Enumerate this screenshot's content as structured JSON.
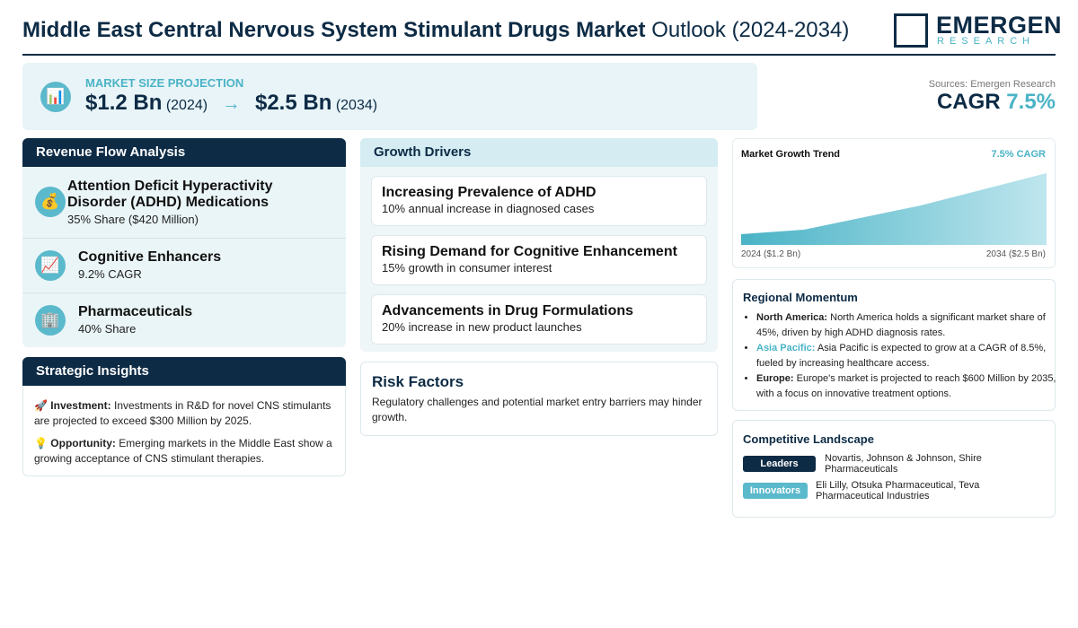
{
  "header": {
    "title_bold": "Middle East Central Nervous System Stimulant Drugs Market",
    "title_rest": "Outlook (2024-2034)",
    "logo_main": "EMERGEN",
    "logo_sub": "RESEARCH"
  },
  "market_size": {
    "label": "MARKET SIZE PROJECTION",
    "start_value": "$1.2 Bn",
    "start_year": "(2024)",
    "end_value": "$2.5 Bn",
    "end_year": "(2034)"
  },
  "summary": {
    "source": "Sources: Emergen Research",
    "cagr_label": "CAGR",
    "cagr_value": "7.5%"
  },
  "revenue_flow": {
    "title": "Revenue Flow Analysis",
    "items": [
      {
        "name": "Attention Deficit Hyperactivity Disorder (ADHD) Medications",
        "detail": "35% Share ($420 Million)"
      },
      {
        "name": "Cognitive Enhancers",
        "detail": "9.2% CAGR"
      },
      {
        "name": "Pharmaceuticals",
        "detail": "40% Share"
      }
    ]
  },
  "strategic_insights": {
    "title": "Strategic Insights",
    "items": [
      {
        "label": "Investment:",
        "text": "Investments in R&D for novel CNS stimulants are projected to exceed $300 Million by 2025."
      },
      {
        "label": "Opportunity:",
        "text": "Emerging markets in the Middle East show a growing acceptance of CNS stimulant therapies."
      }
    ]
  },
  "growth_drivers": {
    "title": "Growth Drivers",
    "items": [
      {
        "name": "Increasing Prevalence of ADHD",
        "detail": "10% annual increase in diagnosed cases"
      },
      {
        "name": "Rising Demand for Cognitive Enhancement",
        "detail": "15% growth in consumer interest"
      },
      {
        "name": "Advancements in Drug Formulations",
        "detail": "20% increase in new product launches"
      }
    ]
  },
  "risk_factors": {
    "title": "Risk Factors",
    "text": "Regulatory challenges and potential market entry barriers may hinder growth."
  },
  "trend": {
    "title": "Market Growth Trend",
    "badge": "7.5% CAGR",
    "start_label": "2024 ($1.2 Bn)",
    "end_label": "2034 ($2.5 Bn)"
  },
  "regional": {
    "title": "Regional Momentum",
    "items": [
      {
        "region": "North America:",
        "text": "North America holds a significant market share of 45%, driven by high ADHD diagnosis rates."
      },
      {
        "region": "Asia Pacific:",
        "text": "Asia Pacific is expected to grow at a CAGR of 8.5%, fueled by increasing healthcare access."
      },
      {
        "region": "Europe:",
        "text": "Europe's market is projected to reach $600 Million by 2035, with a focus on innovative treatment options."
      }
    ]
  },
  "competitive": {
    "title": "Competitive Landscape",
    "groups": [
      {
        "tag": "Leaders",
        "companies": "Novartis, Johnson & Johnson, Shire Pharmaceuticals"
      },
      {
        "tag": "Innovators",
        "companies": "Eli Lilly, Otsuka Pharmaceutical, Teva Pharmaceutical Industries"
      }
    ]
  }
}
